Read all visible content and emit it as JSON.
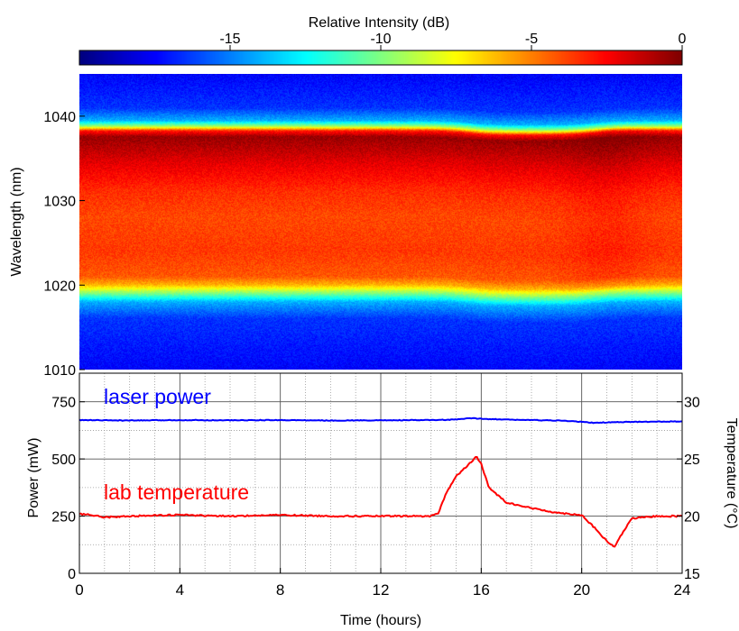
{
  "chart_data": [
    {
      "type": "heatmap",
      "colorbar": {
        "label": "Relative Intensity (dB)",
        "range": [
          -20,
          0
        ],
        "ticks": [
          -15,
          -10,
          -5,
          0
        ],
        "colormap": "jet"
      },
      "ylabel": "Wavelength (nm)",
      "x_range": [
        0,
        24
      ],
      "ylim": [
        1010,
        1045
      ],
      "yticks": [
        1010,
        1020,
        1030,
        1040
      ],
      "background_level_db": -17,
      "band_profile": [
        {
          "wavelength": 1010,
          "db": -17.5
        },
        {
          "wavelength": 1016,
          "db": -16.5
        },
        {
          "wavelength": 1018,
          "db": -14
        },
        {
          "wavelength": 1019,
          "db": -10
        },
        {
          "wavelength": 1020,
          "db": -6
        },
        {
          "wavelength": 1021,
          "db": -4.2
        },
        {
          "wavelength": 1024,
          "db": -3.6
        },
        {
          "wavelength": 1028,
          "db": -3.9
        },
        {
          "wavelength": 1031,
          "db": -3.4
        },
        {
          "wavelength": 1034,
          "db": -2.2
        },
        {
          "wavelength": 1036,
          "db": -1.2
        },
        {
          "wavelength": 1037.6,
          "db": -0.5
        },
        {
          "wavelength": 1038.3,
          "db": -3
        },
        {
          "wavelength": 1038.8,
          "db": -9
        },
        {
          "wavelength": 1039.5,
          "db": -14
        },
        {
          "wavelength": 1041,
          "db": -16.5
        },
        {
          "wavelength": 1045,
          "db": -17.5
        }
      ],
      "band_shift_events": [
        {
          "time": 15.5,
          "shift_nm": -0.5
        },
        {
          "time": 20.5,
          "shift_nm": 0.5
        }
      ]
    },
    {
      "type": "line",
      "xlabel": "Time (hours)",
      "ylabel": "Power (mW)",
      "y2label": "Temperature (°C)",
      "xlim": [
        0,
        24
      ],
      "xticks": [
        0,
        4,
        8,
        12,
        16,
        20,
        24
      ],
      "ylim": [
        0,
        875
      ],
      "yticks": [
        0,
        250,
        500,
        750
      ],
      "y2lim": [
        15,
        32.5
      ],
      "y2ticks": [
        15,
        20,
        25,
        30
      ],
      "grid": true,
      "series": [
        {
          "name": "laser power",
          "axis": "left",
          "color": "#0000ff",
          "x": [
            0,
            2,
            4,
            6,
            8,
            10,
            12,
            14,
            15,
            15.5,
            16,
            17,
            18,
            19,
            19.5,
            20,
            20.5,
            21,
            22,
            23,
            24
          ],
          "values": [
            670,
            668,
            670,
            669,
            670,
            668,
            669,
            670,
            672,
            678,
            676,
            672,
            670,
            668,
            666,
            662,
            658,
            660,
            662,
            663,
            664
          ]
        },
        {
          "name": "lab temperature",
          "axis": "right",
          "color": "#ff0000",
          "x": [
            0,
            0.5,
            1,
            2,
            4,
            6,
            8,
            10,
            12,
            13,
            14,
            14.3,
            14.6,
            15,
            15.5,
            15.8,
            16,
            16.3,
            17,
            18,
            19,
            19.5,
            20,
            20.5,
            21,
            21.3,
            21.7,
            22,
            23,
            24
          ],
          "values": [
            20.2,
            20.1,
            19.9,
            20.0,
            20.1,
            20.0,
            20.1,
            20.0,
            20.0,
            20.0,
            20.0,
            20.3,
            22.0,
            23.5,
            24.5,
            25.2,
            24.6,
            22.5,
            21.2,
            20.7,
            20.3,
            20.2,
            20.1,
            19.0,
            17.8,
            17.3,
            18.8,
            19.8,
            20.0,
            20.0
          ]
        }
      ],
      "annotations": [
        {
          "text": "laser power",
          "color": "#0000ff"
        },
        {
          "text": "lab temperature",
          "color": "#ff0000"
        }
      ]
    }
  ]
}
